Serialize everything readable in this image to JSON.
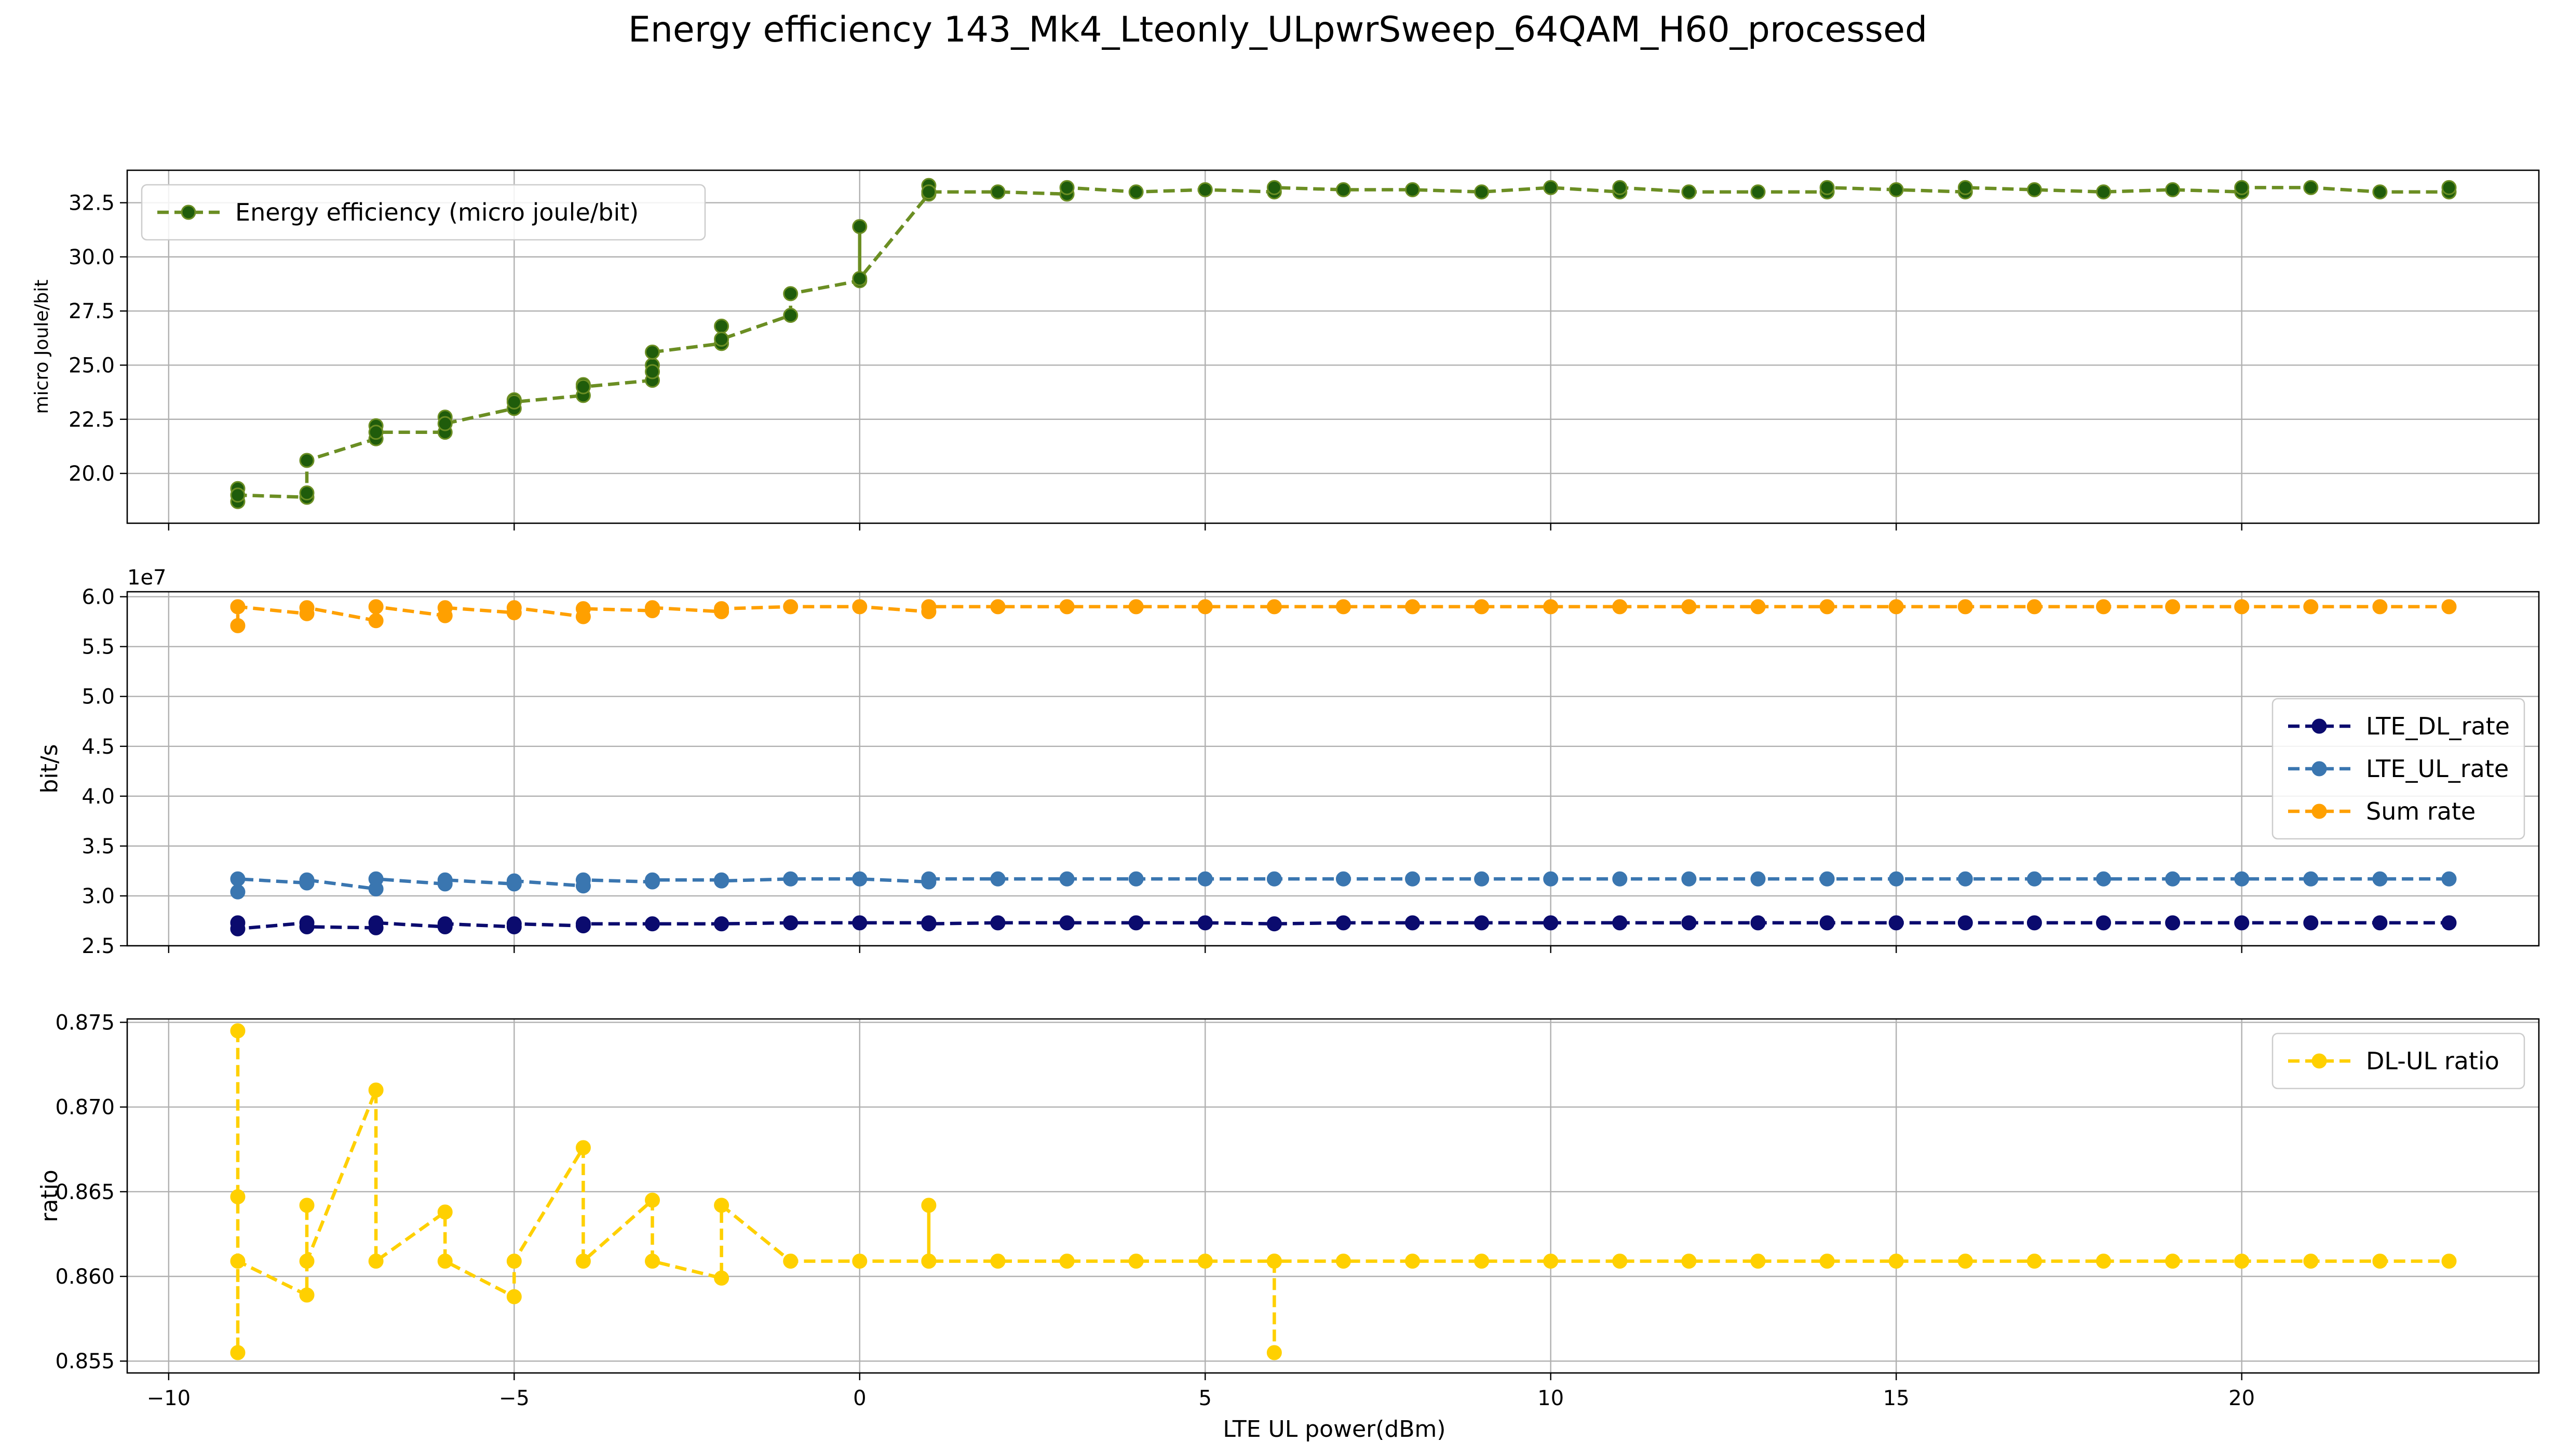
{
  "figure": {
    "title": "Energy efficiency 143_Mk4_Lteonly_ULpwrSweep_64QAM_H60_processed",
    "xlabel": "LTE UL power(dBm)"
  },
  "chart_data": [
    {
      "type": "line",
      "ylabel": "micro Joule/bit",
      "xlim": [
        -10.6,
        24.3
      ],
      "ylim": [
        17.7,
        34.0
      ],
      "xticks": [
        -10,
        -5,
        0,
        5,
        10,
        15,
        20
      ],
      "xtick_labels": [
        "−10",
        "−5",
        "0",
        "5",
        "10",
        "15",
        "20"
      ],
      "yticks": [
        20.0,
        22.5,
        25.0,
        27.5,
        30.0,
        32.5
      ],
      "ytick_labels": [
        "20.0",
        "22.5",
        "25.0",
        "27.5",
        "30.0",
        "32.5"
      ],
      "grid": true,
      "legend": "upper left",
      "series": [
        {
          "name": "Energy efficiency (micro joule/bit)",
          "color": "#6b8e23",
          "marker_color": "#1f5c0b",
          "x": [
            -9,
            -9,
            -9,
            -8,
            -8,
            -8,
            -7,
            -7,
            -7,
            -6,
            -6,
            -6,
            -5,
            -5,
            -5,
            -4,
            -4,
            -4,
            -3,
            -3,
            -3,
            -3,
            -2,
            -2,
            -2,
            -1,
            -1,
            0,
            0,
            0,
            1,
            1,
            1,
            2,
            3,
            3,
            4,
            5,
            6,
            6,
            7,
            8,
            9,
            10,
            11,
            11,
            12,
            13,
            14,
            14,
            15,
            16,
            16,
            17,
            18,
            19,
            20,
            20,
            21,
            22,
            23,
            23
          ],
          "y": [
            18.7,
            19.3,
            19.0,
            18.9,
            19.1,
            20.6,
            21.6,
            22.2,
            21.9,
            21.9,
            22.6,
            22.3,
            23.0,
            23.4,
            23.3,
            23.6,
            24.1,
            24.0,
            24.3,
            25.0,
            24.7,
            25.6,
            26.0,
            26.8,
            26.2,
            27.3,
            28.3,
            28.9,
            31.4,
            29.0,
            32.9,
            33.3,
            33.0,
            33.0,
            32.9,
            33.2,
            33.0,
            33.1,
            33.0,
            33.2,
            33.1,
            33.1,
            33.0,
            33.2,
            33.0,
            33.2,
            33.0,
            33.0,
            33.0,
            33.2,
            33.1,
            33.0,
            33.2,
            33.1,
            33.0,
            33.1,
            33.0,
            33.2,
            33.2,
            33.0,
            33.0,
            33.2
          ]
        }
      ]
    },
    {
      "type": "line",
      "ylabel": "bit/s",
      "offset_label": "1e7",
      "xlim": [
        -10.6,
        24.3
      ],
      "ylim": [
        2.5,
        6.05
      ],
      "xticks": [
        -10,
        -5,
        0,
        5,
        10,
        15,
        20
      ],
      "yticks": [
        2.5,
        3.0,
        3.5,
        4.0,
        4.5,
        5.0,
        5.5,
        6.0
      ],
      "ytick_labels": [
        "2.5",
        "3.0",
        "3.5",
        "4.0",
        "4.5",
        "5.0",
        "5.5",
        "6.0"
      ],
      "grid": true,
      "legend": "center right",
      "series": [
        {
          "name": "LTE_DL_rate",
          "color": "#0b0b6e",
          "x": [
            -9,
            -9,
            -8,
            -8,
            -7,
            -7,
            -6,
            -6,
            -5,
            -5,
            -4,
            -4,
            -3,
            -2,
            -1,
            0,
            1,
            1,
            2,
            3,
            4,
            5,
            6,
            7,
            8,
            9,
            10,
            11,
            12,
            13,
            14,
            15,
            16,
            17,
            18,
            19,
            20,
            21,
            22,
            23
          ],
          "y": [
            2.73,
            2.67,
            2.73,
            2.69,
            2.68,
            2.73,
            2.69,
            2.72,
            2.69,
            2.72,
            2.7,
            2.72,
            2.72,
            2.72,
            2.73,
            2.73,
            2.73,
            2.72,
            2.73,
            2.73,
            2.73,
            2.73,
            2.72,
            2.73,
            2.73,
            2.73,
            2.73,
            2.73,
            2.73,
            2.73,
            2.73,
            2.73,
            2.73,
            2.73,
            2.73,
            2.73,
            2.73,
            2.73,
            2.73,
            2.73
          ]
        },
        {
          "name": "LTE_UL_rate",
          "color": "#3a76b0",
          "x": [
            -9,
            -9,
            -8,
            -8,
            -7,
            -7,
            -6,
            -6,
            -5,
            -5,
            -4,
            -4,
            -3,
            -3,
            -2,
            -2,
            -1,
            0,
            1,
            1,
            2,
            3,
            4,
            5,
            6,
            7,
            8,
            9,
            10,
            11,
            12,
            13,
            14,
            15,
            16,
            17,
            18,
            19,
            20,
            21,
            22,
            23
          ],
          "y": [
            3.04,
            3.17,
            3.13,
            3.16,
            3.07,
            3.17,
            3.12,
            3.16,
            3.12,
            3.15,
            3.1,
            3.16,
            3.14,
            3.16,
            3.16,
            3.15,
            3.17,
            3.17,
            3.14,
            3.17,
            3.17,
            3.17,
            3.17,
            3.17,
            3.17,
            3.17,
            3.17,
            3.17,
            3.17,
            3.17,
            3.17,
            3.17,
            3.17,
            3.17,
            3.17,
            3.17,
            3.17,
            3.17,
            3.17,
            3.17,
            3.17,
            3.17
          ]
        },
        {
          "name": "Sum rate",
          "color": "#ffa000",
          "x": [
            -9,
            -9,
            -8,
            -8,
            -7,
            -7,
            -6,
            -6,
            -5,
            -5,
            -4,
            -4,
            -3,
            -3,
            -2,
            -2,
            -1,
            0,
            1,
            1,
            2,
            3,
            4,
            5,
            6,
            7,
            8,
            9,
            10,
            11,
            12,
            13,
            14,
            15,
            16,
            17,
            18,
            19,
            20,
            21,
            22,
            23
          ],
          "y": [
            5.71,
            5.9,
            5.83,
            5.89,
            5.76,
            5.9,
            5.81,
            5.89,
            5.84,
            5.89,
            5.8,
            5.88,
            5.86,
            5.89,
            5.85,
            5.88,
            5.9,
            5.9,
            5.85,
            5.9,
            5.9,
            5.9,
            5.9,
            5.9,
            5.9,
            5.9,
            5.9,
            5.9,
            5.9,
            5.9,
            5.9,
            5.9,
            5.9,
            5.9,
            5.9,
            5.9,
            5.9,
            5.9,
            5.9,
            5.9,
            5.9,
            5.9
          ]
        }
      ]
    },
    {
      "type": "line",
      "ylabel": "ratio",
      "xlim": [
        -10.6,
        24.3
      ],
      "ylim": [
        0.8543,
        0.8752
      ],
      "xticks": [
        -10,
        -5,
        0,
        5,
        10,
        15,
        20
      ],
      "xtick_labels": [
        "−10",
        "−5",
        "0",
        "5",
        "10",
        "15",
        "20"
      ],
      "yticks": [
        0.855,
        0.86,
        0.865,
        0.87,
        0.875
      ],
      "ytick_labels": [
        "0.855",
        "0.860",
        "0.865",
        "0.870",
        "0.875"
      ],
      "grid": true,
      "legend": "upper right",
      "series": [
        {
          "name": "DL-UL ratio",
          "color": "#ffd000",
          "x": [
            -9,
            -9,
            -9,
            -9,
            -8,
            -8,
            -8,
            -7,
            -7,
            -6,
            -6,
            -5,
            -5,
            -4,
            -4,
            -3,
            -3,
            -2,
            -2,
            -1,
            0,
            1,
            1,
            1,
            2,
            3,
            4,
            5,
            6,
            6,
            6,
            7,
            8,
            9,
            10,
            11,
            12,
            13,
            14,
            15,
            16,
            17,
            18,
            19,
            20,
            21,
            22,
            23
          ],
          "y": [
            0.8745,
            0.8647,
            0.8555,
            0.8609,
            0.8589,
            0.8642,
            0.8609,
            0.871,
            0.8609,
            0.8638,
            0.8609,
            0.8588,
            0.8609,
            0.8676,
            0.8609,
            0.8645,
            0.8609,
            0.8599,
            0.8642,
            0.8609,
            0.8609,
            0.8609,
            0.8642,
            0.8609,
            0.8609,
            0.8609,
            0.8609,
            0.8609,
            0.8609,
            0.8555,
            0.8609,
            0.8609,
            0.8609,
            0.8609,
            0.8609,
            0.8609,
            0.8609,
            0.8609,
            0.8609,
            0.8609,
            0.8609,
            0.8609,
            0.8609,
            0.8609,
            0.8609,
            0.8609,
            0.8609,
            0.8609
          ]
        }
      ]
    }
  ]
}
